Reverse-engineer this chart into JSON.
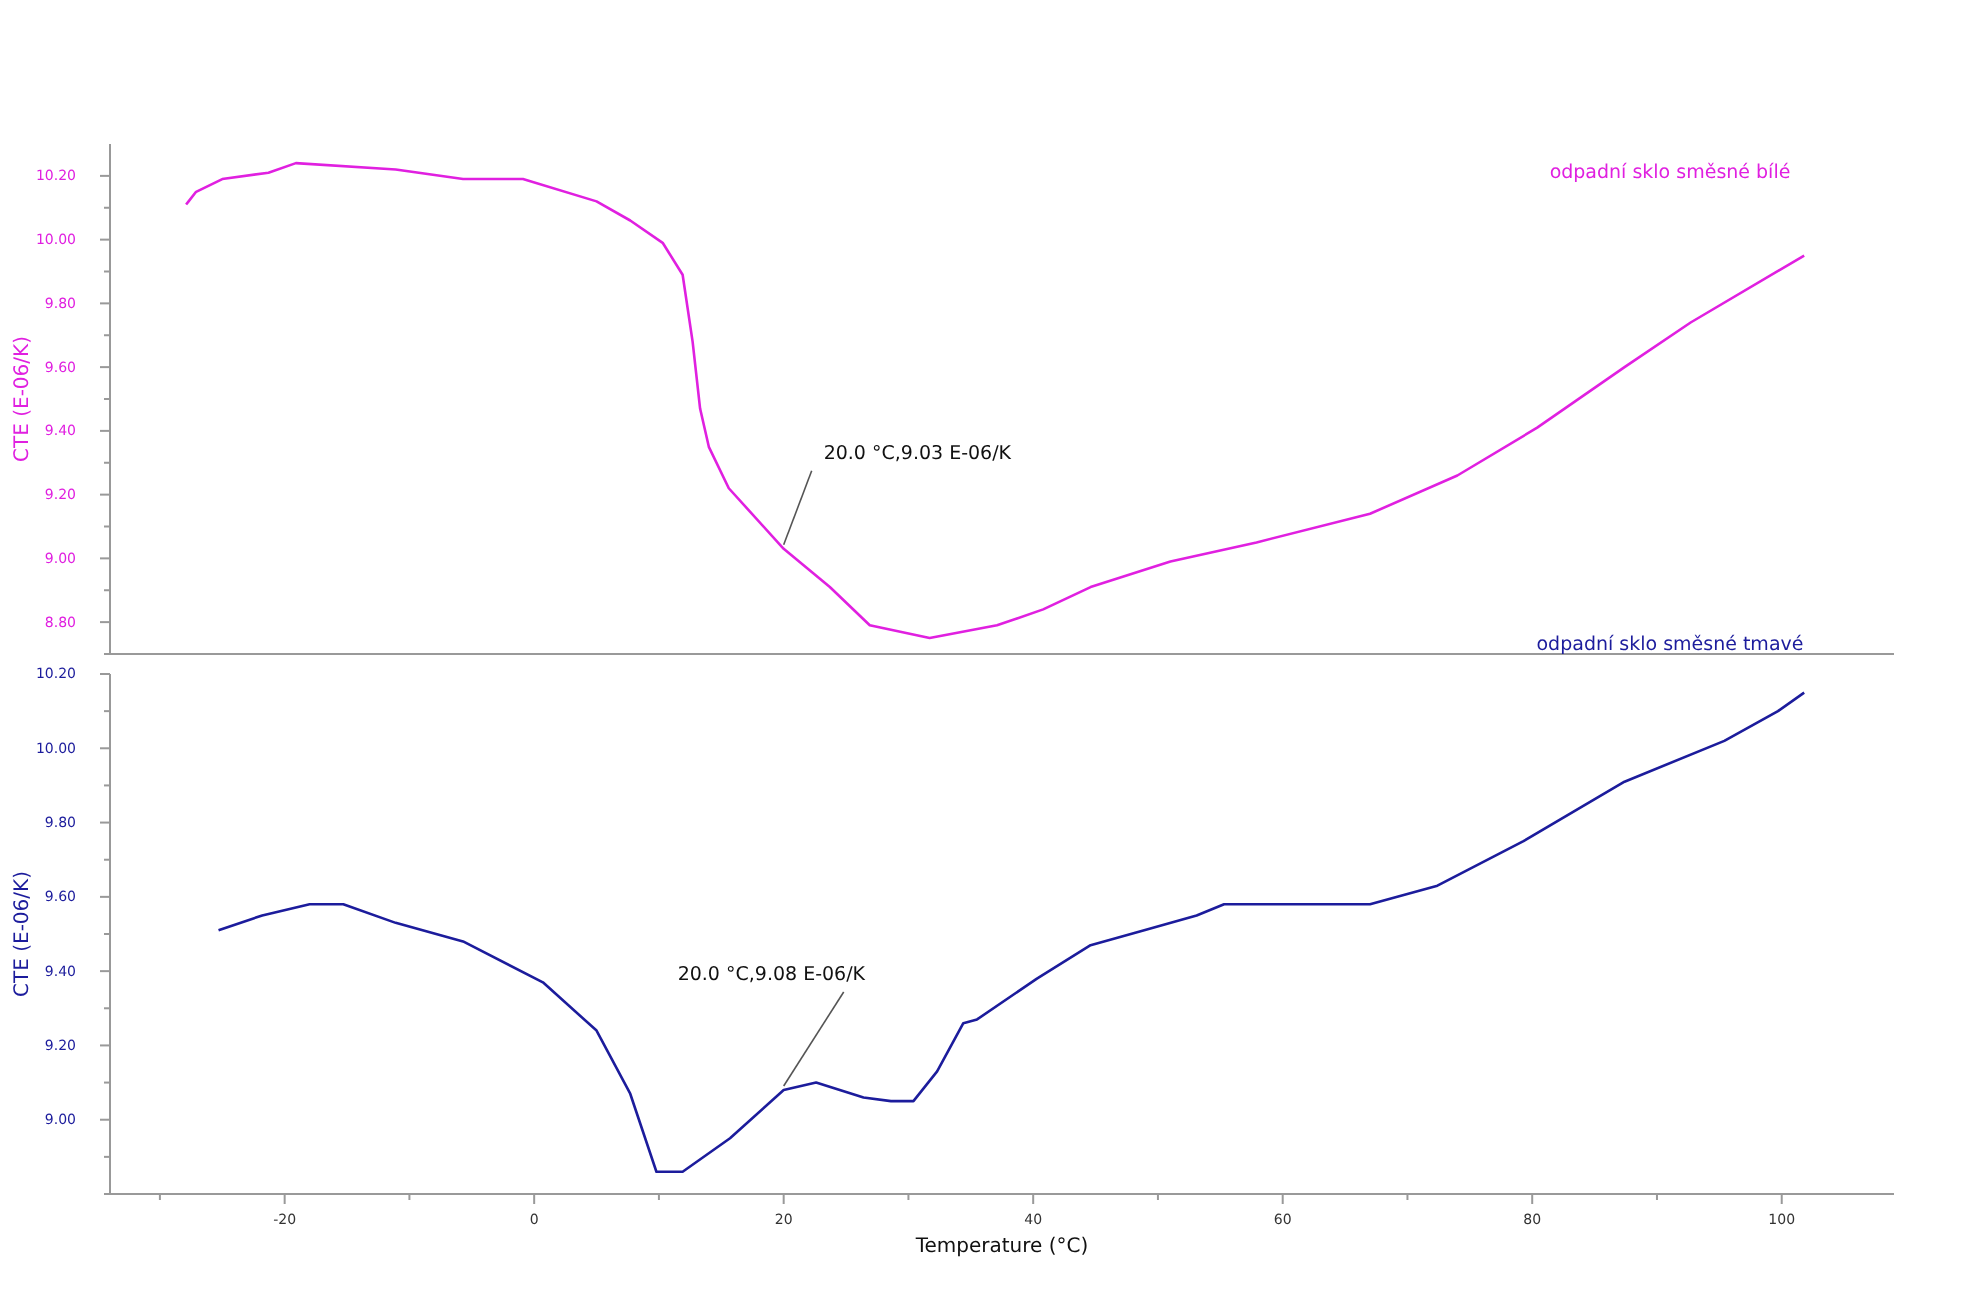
{
  "chart_data": [
    {
      "type": "line",
      "ylabel": "CTE (E-06/K)",
      "xlim": [
        -34,
        109
      ],
      "ylim": [
        8.7,
        10.3
      ],
      "yticks": [
        {
          "value": 8.7,
          "label": null
        },
        {
          "value": 8.8,
          "label": "8.80"
        },
        {
          "value": 8.9,
          "label": null
        },
        {
          "value": 9.0,
          "label": "9.00"
        },
        {
          "value": 9.1,
          "label": null
        },
        {
          "value": 9.2,
          "label": "9.20"
        },
        {
          "value": 9.3,
          "label": null
        },
        {
          "value": 9.4,
          "label": "9.40"
        },
        {
          "value": 9.5,
          "label": null
        },
        {
          "value": 9.6,
          "label": "9.60"
        },
        {
          "value": 9.7,
          "label": null
        },
        {
          "value": 9.8,
          "label": "9.80"
        },
        {
          "value": 9.9,
          "label": null
        },
        {
          "value": 10.0,
          "label": "10.00"
        },
        {
          "value": 10.1,
          "label": null
        },
        {
          "value": 10.2,
          "label": "10.20"
        }
      ],
      "tick_labels": "y",
      "grid": false,
      "marker": "none",
      "line_style": "solid",
      "annotations": [
        {
          "text": "20.0 °C,9.03 E-06/K",
          "x": 20,
          "y": 9.03
        }
      ],
      "series": [
        {
          "name": "odpadní sklo směsné bílé",
          "color": "#e020e0",
          "x": [
            -27.9,
            -27.7,
            -27.1,
            -25.0,
            -21.3,
            -19.1,
            -11.1,
            -5.7,
            -0.9,
            5.0,
            7.7,
            10.3,
            11.9,
            12.7,
            13.3,
            14.0,
            15.6,
            20.0,
            23.7,
            26.9,
            31.7,
            37.1,
            40.8,
            44.6,
            51.0,
            57.9,
            67.0,
            74.0,
            80.4,
            87.4,
            92.7,
            101.8
          ],
          "values": [
            10.11,
            10.12,
            10.15,
            10.19,
            10.21,
            10.24,
            10.22,
            10.19,
            10.19,
            10.12,
            10.06,
            9.99,
            9.89,
            9.68,
            9.47,
            9.35,
            9.22,
            9.03,
            8.91,
            8.79,
            8.75,
            8.79,
            8.84,
            8.91,
            8.99,
            9.05,
            9.14,
            9.26,
            9.41,
            9.6,
            9.74,
            9.95
          ]
        }
      ]
    },
    {
      "type": "line",
      "xlabel": "Temperature (°C)",
      "ylabel": "CTE (E-06/K)",
      "xlim": [
        -34,
        109
      ],
      "ylim": [
        8.8,
        10.2
      ],
      "xticks": [
        {
          "value": -30,
          "label": null
        },
        -20,
        {
          "value": -10,
          "label": null
        },
        0,
        {
          "value": 10,
          "label": null
        },
        20,
        {
          "value": 30,
          "label": null
        },
        40,
        {
          "value": 50,
          "label": null
        },
        60,
        {
          "value": 70,
          "label": null
        },
        80,
        {
          "value": 90,
          "label": null
        },
        100
      ],
      "yticks": [
        {
          "value": 8.8,
          "label": null
        },
        {
          "value": 8.9,
          "label": null
        },
        {
          "value": 9.0,
          "label": "9.00"
        },
        {
          "value": 9.1,
          "label": null
        },
        {
          "value": 9.2,
          "label": "9.20"
        },
        {
          "value": 9.3,
          "label": null
        },
        {
          "value": 9.4,
          "label": "9.40"
        },
        {
          "value": 9.5,
          "label": null
        },
        {
          "value": 9.6,
          "label": "9.60"
        },
        {
          "value": 9.7,
          "label": null
        },
        {
          "value": 9.8,
          "label": "9.80"
        },
        {
          "value": 9.9,
          "label": null
        },
        {
          "value": 10.0,
          "label": "10.00"
        },
        {
          "value": 10.1,
          "label": null
        },
        {
          "value": 10.2,
          "label": "10.20"
        }
      ],
      "grid": false,
      "marker": "none",
      "line_style": "solid",
      "annotations": [
        {
          "text": "20.0 °C,9.08 E-06/K",
          "x": 20,
          "y": 9.08
        }
      ],
      "series": [
        {
          "name": "odpadní sklo směsné tmavé",
          "color": "#1c1c9c",
          "x": [
            -25.3,
            -21.8,
            -18.0,
            -15.3,
            -11.1,
            -5.7,
            0.7,
            5.0,
            7.7,
            9.8,
            11.9,
            15.7,
            20.0,
            22.6,
            26.4,
            28.6,
            30.4,
            32.3,
            34.4,
            35.5,
            40.3,
            44.6,
            48.9,
            53.1,
            55.3,
            60.6,
            67.0,
            72.4,
            79.3,
            87.4,
            95.4,
            99.7,
            101.8
          ],
          "values": [
            9.51,
            9.55,
            9.58,
            9.58,
            9.53,
            9.48,
            9.37,
            9.24,
            9.07,
            8.86,
            8.86,
            8.95,
            9.08,
            9.1,
            9.06,
            9.05,
            9.05,
            9.13,
            9.26,
            9.27,
            9.38,
            9.47,
            9.51,
            9.55,
            9.58,
            9.58,
            9.58,
            9.63,
            9.75,
            9.91,
            10.02,
            10.1,
            10.15
          ]
        }
      ]
    }
  ]
}
